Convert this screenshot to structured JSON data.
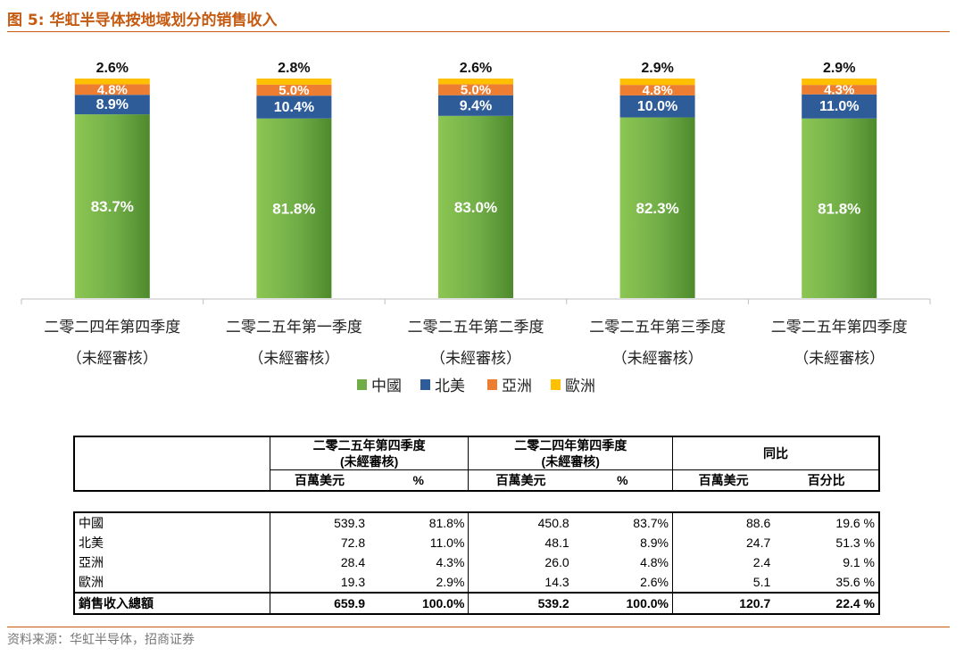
{
  "figure_title": "图 5:  华虹半导体按地域划分的销售收入",
  "source": "资料来源：华虹半导体，招商证券",
  "colors": {
    "china": "#70AD47",
    "china_dark": "#4E8A2C",
    "na": "#2E5C99",
    "asia": "#ED7D31",
    "europe": "#FFC000",
    "accent": "#C55A11"
  },
  "chart_data": {
    "type": "bar",
    "stacked": true,
    "normalized": true,
    "categories": [
      [
        "二零二四年第四季度",
        "（未經審核）"
      ],
      [
        "二零二五年第一季度",
        "（未經審核）"
      ],
      [
        "二零二五年第二季度",
        "（未經審核）"
      ],
      [
        "二零二五年第三季度",
        "（未經審核）"
      ],
      [
        "二零二五年第四季度",
        "（未經審核）"
      ]
    ],
    "series": [
      {
        "name": "中國",
        "color": "#70AD47",
        "values": [
          83.7,
          81.8,
          83.0,
          82.3,
          81.8
        ],
        "labels": [
          "83.7%",
          "81.8%",
          "83.0%",
          "82.3%",
          "81.8%"
        ]
      },
      {
        "name": "北美",
        "color": "#2E5C99",
        "values": [
          8.9,
          10.4,
          9.4,
          10.0,
          11.0
        ],
        "labels": [
          "8.9%",
          "10.4%",
          "9.4%",
          "10.0%",
          "11.0%"
        ]
      },
      {
        "name": "亞洲",
        "color": "#ED7D31",
        "values": [
          4.8,
          5.0,
          5.0,
          4.8,
          4.3
        ],
        "labels": [
          "4.8%",
          "5.0%",
          "5.0%",
          "4.8%",
          "4.3%"
        ]
      },
      {
        "name": "歐洲",
        "color": "#FFC000",
        "values": [
          2.6,
          2.8,
          2.6,
          2.9,
          2.9
        ],
        "labels": [
          "2.6%",
          "2.8%",
          "2.6%",
          "2.9%",
          "2.9%"
        ]
      }
    ],
    "ylim": [
      0,
      100
    ],
    "legend_position": "bottom-center"
  },
  "table": {
    "group_headers": [
      [
        "二零二五年第四季度",
        "(未經審核)"
      ],
      [
        "二零二四年第四季度",
        "(未經審核)"
      ],
      [
        "同比"
      ]
    ],
    "sub_headers": [
      "百萬美元",
      "%",
      "百萬美元",
      "%",
      "百萬美元",
      "百分比"
    ],
    "rows": [
      {
        "label": "中國",
        "values": [
          "539.3",
          "81.8%",
          "450.8",
          "83.7%",
          "88.6",
          "19.6 %"
        ]
      },
      {
        "label": "北美",
        "values": [
          "72.8",
          "11.0%",
          "48.1",
          "8.9%",
          "24.7",
          "51.3 %"
        ]
      },
      {
        "label": "亞洲",
        "values": [
          "28.4",
          "4.3%",
          "26.0",
          "4.8%",
          "2.4",
          "9.1 %"
        ]
      },
      {
        "label": "歐洲",
        "values": [
          "19.3",
          "2.9%",
          "14.3",
          "2.6%",
          "5.1",
          "35.6 %"
        ]
      }
    ],
    "total": {
      "label": "銷售收入總額",
      "values": [
        "659.9",
        "100.0%",
        "539.2",
        "100.0%",
        "120.7",
        "22.4 %"
      ]
    }
  }
}
